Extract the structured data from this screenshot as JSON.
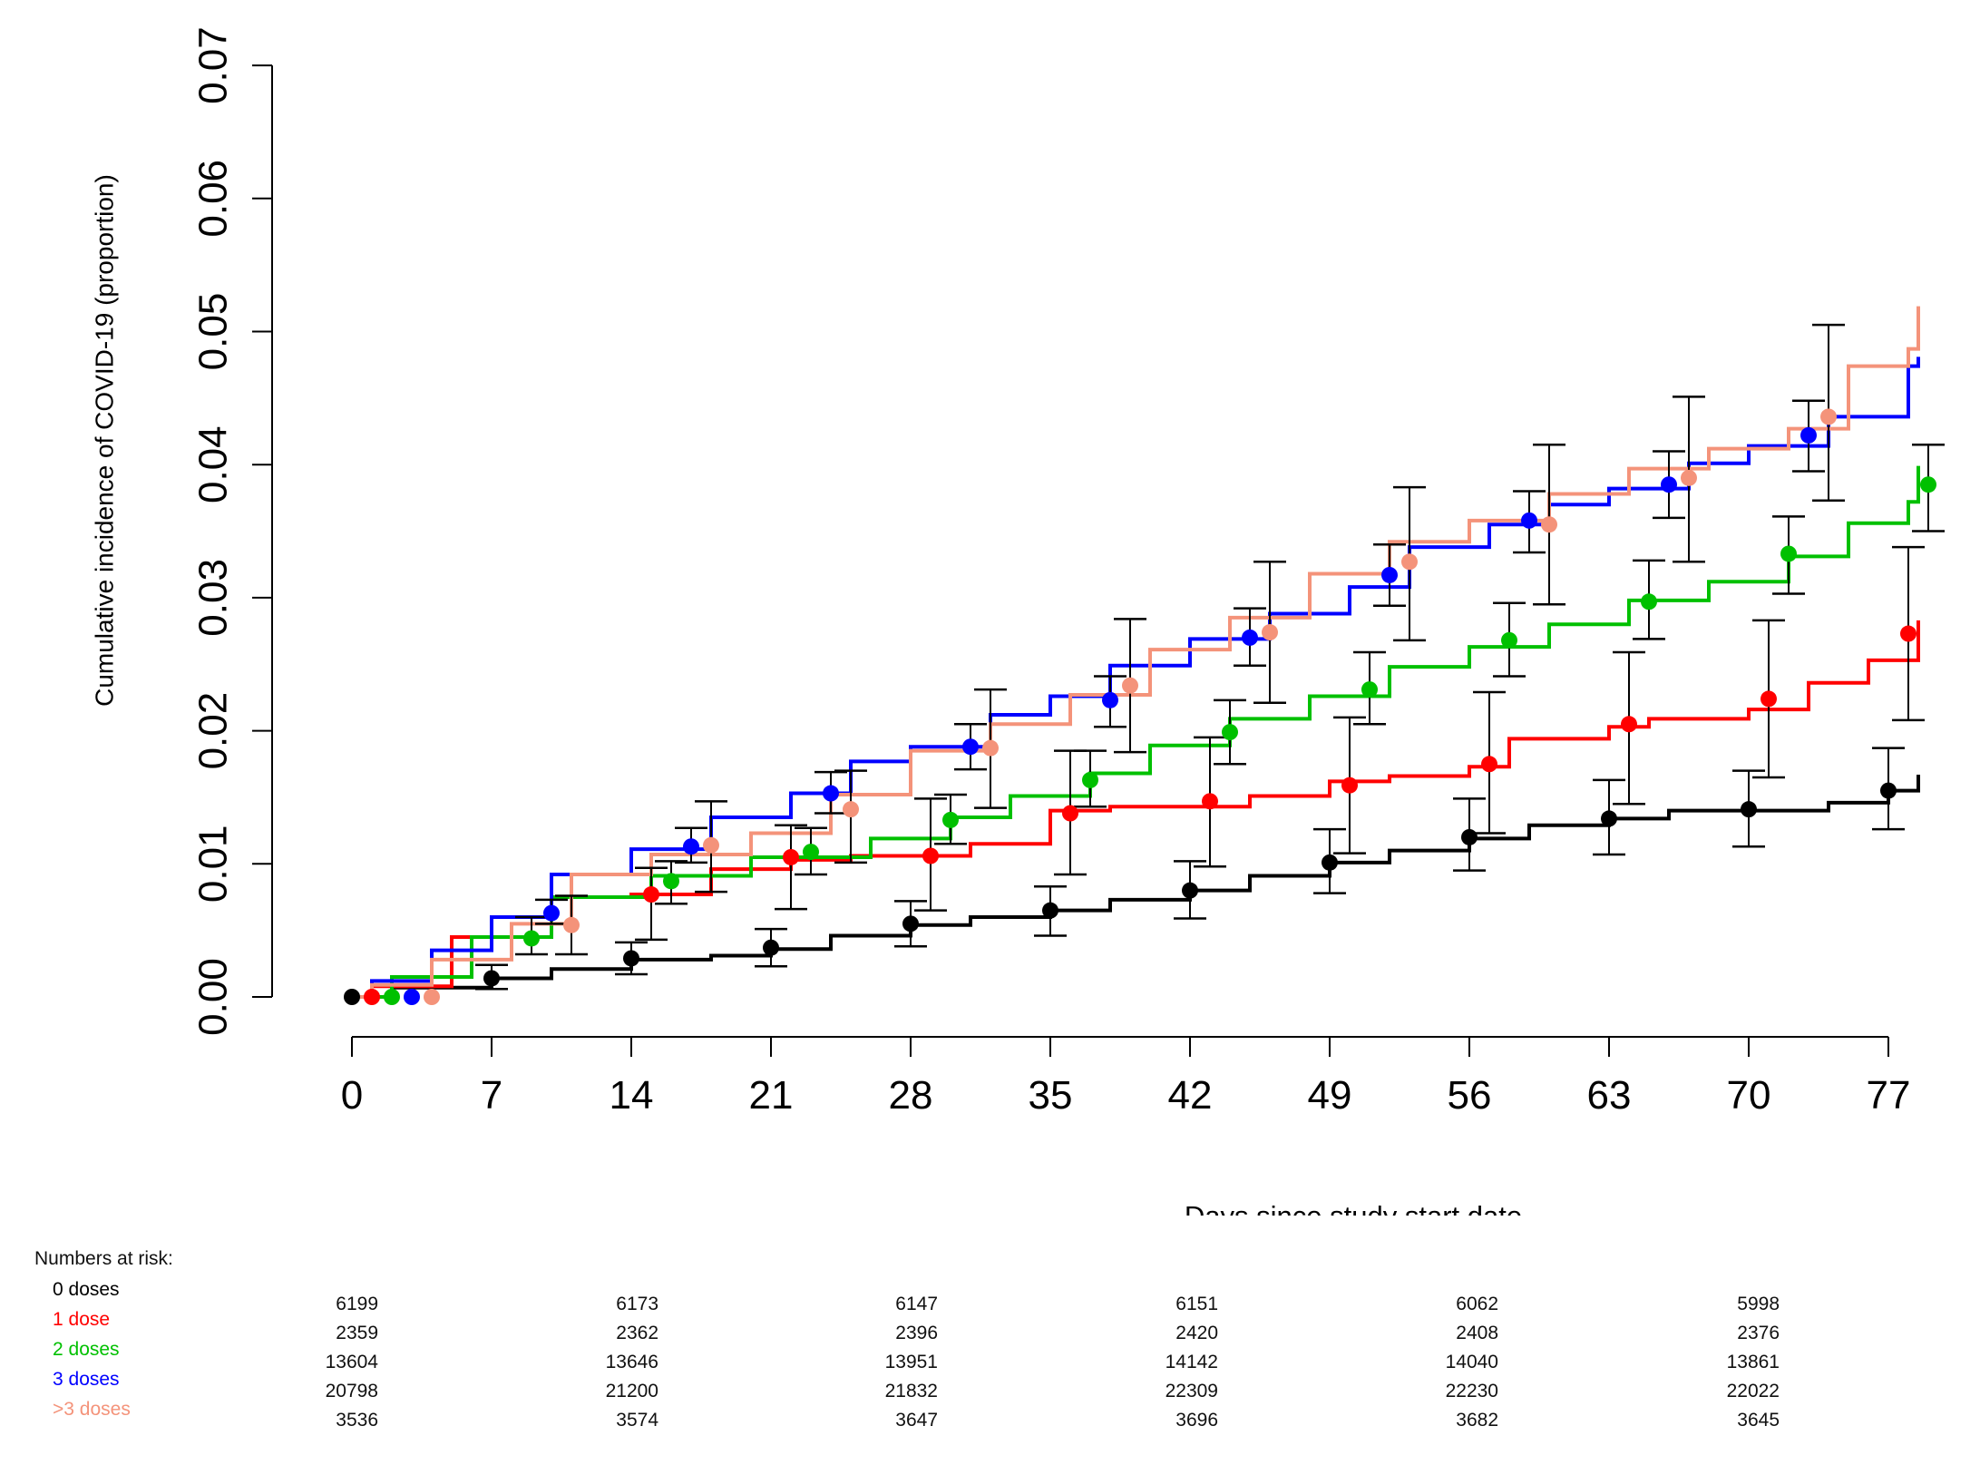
{
  "chart_data": {
    "type": "line",
    "xlabel": "Days since study start date",
    "ylabel": "Cumulative incidence of COVID-19 (proportion)",
    "xlim": [
      0,
      80.5
    ],
    "ylim": [
      0,
      0.07
    ],
    "x_ticks": [
      0,
      7,
      14,
      21,
      28,
      35,
      42,
      49,
      56,
      63,
      70,
      77
    ],
    "y_ticks": [
      "0.00",
      "0.01",
      "0.02",
      "0.03",
      "0.04",
      "0.05",
      "0.06",
      "0.07"
    ],
    "step": true,
    "series": [
      {
        "color": "#000000",
        "x": [
          0,
          2,
          7,
          10,
          14,
          18,
          21,
          24,
          28,
          31,
          35,
          38,
          42,
          45,
          49,
          52,
          56,
          59,
          63,
          66,
          70,
          74,
          77,
          78.5
        ],
        "y": [
          0,
          0.0007,
          0.0014,
          0.0021,
          0.0028,
          0.0031,
          0.0036,
          0.0046,
          0.0054,
          0.006,
          0.0065,
          0.0073,
          0.008,
          0.0091,
          0.0101,
          0.011,
          0.0119,
          0.0129,
          0.0134,
          0.014,
          0.014,
          0.0146,
          0.0155,
          0.0167
        ],
        "points": [
          [
            0,
            0
          ],
          [
            7,
            0.0014
          ],
          [
            14,
            0.0029
          ],
          [
            21,
            0.0037
          ],
          [
            28,
            0.0055
          ],
          [
            35,
            0.0065
          ],
          [
            42,
            0.008
          ],
          [
            49,
            0.0101
          ],
          [
            56,
            0.012
          ],
          [
            63,
            0.0134
          ],
          [
            70,
            0.0141
          ],
          [
            77,
            0.0155
          ]
        ],
        "ci": [
          [
            7,
            0.0006,
            0.0024
          ],
          [
            14,
            0.0017,
            0.0041
          ],
          [
            21,
            0.0023,
            0.0051
          ],
          [
            28,
            0.0038,
            0.0072
          ],
          [
            35,
            0.0046,
            0.0083
          ],
          [
            42,
            0.0059,
            0.0102
          ],
          [
            49,
            0.0078,
            0.0126
          ],
          [
            56,
            0.0095,
            0.0149
          ],
          [
            63,
            0.0107,
            0.0163
          ],
          [
            70,
            0.0113,
            0.017
          ],
          [
            77,
            0.0126,
            0.0187
          ]
        ]
      },
      {
        "color": "#ff0000",
        "x": [
          0,
          1,
          5,
          10,
          14,
          18,
          22,
          25,
          31,
          35,
          38,
          45,
          49,
          52,
          56,
          58,
          63,
          65,
          70,
          73,
          76,
          78.5
        ],
        "y": [
          0,
          0.0008,
          0.0045,
          0.0075,
          0.0077,
          0.0096,
          0.0103,
          0.0106,
          0.0115,
          0.014,
          0.0143,
          0.0151,
          0.0162,
          0.0166,
          0.0173,
          0.0194,
          0.0203,
          0.0209,
          0.0216,
          0.0236,
          0.0253,
          0.0283
        ],
        "points": [
          [
            1,
            0
          ],
          [
            15,
            0.0077
          ],
          [
            22,
            0.0105
          ],
          [
            29,
            0.0106
          ],
          [
            36,
            0.0138
          ],
          [
            43,
            0.0147
          ],
          [
            50,
            0.0159
          ],
          [
            57,
            0.0175
          ],
          [
            64,
            0.0205
          ],
          [
            71,
            0.0224
          ],
          [
            78,
            0.0273
          ]
        ],
        "ci": [
          [
            15,
            0.0043,
            0.0097
          ],
          [
            22,
            0.0066,
            0.0129
          ],
          [
            29,
            0.0065,
            0.0149
          ],
          [
            36,
            0.0092,
            0.0185
          ],
          [
            43,
            0.0098,
            0.0195
          ],
          [
            50,
            0.0108,
            0.021
          ],
          [
            57,
            0.0123,
            0.0229
          ],
          [
            64,
            0.0145,
            0.0259
          ],
          [
            71,
            0.0165,
            0.0283
          ],
          [
            78,
            0.0208,
            0.0338
          ]
        ]
      },
      {
        "color": "#00c000",
        "x": [
          0,
          2,
          6,
          10,
          15,
          20,
          26,
          30,
          33,
          37,
          40,
          44,
          48,
          52,
          56,
          60,
          64,
          68,
          72,
          75,
          78,
          78.5
        ],
        "y": [
          0,
          0.0015,
          0.0045,
          0.0075,
          0.0091,
          0.0105,
          0.0119,
          0.0135,
          0.0151,
          0.0168,
          0.0189,
          0.0209,
          0.0226,
          0.0248,
          0.0263,
          0.028,
          0.0298,
          0.0312,
          0.0331,
          0.0356,
          0.0372,
          0.0399
        ],
        "points": [
          [
            2,
            0
          ],
          [
            9,
            0.0044
          ],
          [
            16,
            0.0087
          ],
          [
            23,
            0.0109
          ],
          [
            30,
            0.0133
          ],
          [
            37,
            0.0163
          ],
          [
            44,
            0.0199
          ],
          [
            51,
            0.0231
          ],
          [
            58,
            0.0268
          ],
          [
            65,
            0.0297
          ],
          [
            72,
            0.0333
          ],
          [
            79,
            0.0385
          ]
        ],
        "ci": [
          [
            9,
            0.0032,
            0.006
          ],
          [
            16,
            0.007,
            0.0102
          ],
          [
            23,
            0.0092,
            0.0127
          ],
          [
            30,
            0.0115,
            0.0152
          ],
          [
            37,
            0.0143,
            0.0185
          ],
          [
            44,
            0.0175,
            0.0223
          ],
          [
            51,
            0.0205,
            0.0259
          ],
          [
            58,
            0.0241,
            0.0296
          ],
          [
            65,
            0.0269,
            0.0328
          ],
          [
            72,
            0.0303,
            0.0361
          ],
          [
            79,
            0.035,
            0.0415
          ]
        ]
      },
      {
        "color": "#0000ff",
        "x": [
          0,
          1,
          4,
          7,
          10,
          14,
          18,
          22,
          25,
          28,
          32,
          35,
          38,
          42,
          46,
          50,
          53,
          57,
          60,
          63,
          67,
          70,
          74,
          78,
          78.5
        ],
        "y": [
          0,
          0.0012,
          0.0035,
          0.006,
          0.0092,
          0.0111,
          0.0135,
          0.0153,
          0.0177,
          0.0188,
          0.0212,
          0.0226,
          0.0249,
          0.0269,
          0.0288,
          0.0308,
          0.0338,
          0.0355,
          0.037,
          0.0382,
          0.0401,
          0.0414,
          0.0436,
          0.0474,
          0.0481
        ],
        "points": [
          [
            3,
            0
          ],
          [
            10,
            0.0063
          ],
          [
            17,
            0.0113
          ],
          [
            24,
            0.0153
          ],
          [
            31,
            0.0188
          ],
          [
            38,
            0.0223
          ],
          [
            45,
            0.027
          ],
          [
            52,
            0.0317
          ],
          [
            59,
            0.0358
          ],
          [
            66,
            0.0385
          ],
          [
            73,
            0.0422
          ]
        ],
        "ci": [
          [
            10,
            0.0055,
            0.0073
          ],
          [
            17,
            0.0101,
            0.0127
          ],
          [
            24,
            0.0138,
            0.0169
          ],
          [
            31,
            0.0171,
            0.0205
          ],
          [
            38,
            0.0203,
            0.0241
          ],
          [
            45,
            0.0249,
            0.0292
          ],
          [
            52,
            0.0294,
            0.034
          ],
          [
            59,
            0.0334,
            0.038
          ],
          [
            66,
            0.036,
            0.041
          ],
          [
            73,
            0.0395,
            0.0448
          ]
        ]
      },
      {
        "color": "#f4937a",
        "x": [
          0,
          1,
          4,
          8,
          11,
          15,
          20,
          24,
          28,
          32,
          36,
          40,
          44,
          48,
          52,
          56,
          60,
          64,
          68,
          72,
          75,
          78,
          78.5
        ],
        "y": [
          0,
          0.0009,
          0.0028,
          0.0055,
          0.0092,
          0.0107,
          0.0123,
          0.0152,
          0.0185,
          0.0205,
          0.0227,
          0.0261,
          0.0285,
          0.0318,
          0.0342,
          0.0358,
          0.0378,
          0.0397,
          0.0412,
          0.0427,
          0.0474,
          0.0487,
          0.0519
        ],
        "points": [
          [
            4,
            0
          ],
          [
            11,
            0.0054
          ],
          [
            18,
            0.0114
          ],
          [
            25,
            0.0141
          ],
          [
            32,
            0.0187
          ],
          [
            39,
            0.0234
          ],
          [
            46,
            0.0274
          ],
          [
            53,
            0.0327
          ],
          [
            60,
            0.0355
          ],
          [
            67,
            0.039
          ],
          [
            74,
            0.0436
          ]
        ],
        "ci": [
          [
            11,
            0.0032,
            0.0076
          ],
          [
            18,
            0.0079,
            0.0147
          ],
          [
            25,
            0.0101,
            0.017
          ],
          [
            32,
            0.0142,
            0.0231
          ],
          [
            39,
            0.0184,
            0.0284
          ],
          [
            46,
            0.0221,
            0.0327
          ],
          [
            53,
            0.0268,
            0.0383
          ],
          [
            60,
            0.0295,
            0.0415
          ],
          [
            67,
            0.0327,
            0.0451
          ],
          [
            74,
            0.0373,
            0.0505
          ]
        ]
      }
    ]
  },
  "risk_table": {
    "title": "Numbers at risk:",
    "rows": [
      {
        "label": "0 doses",
        "color": "#000000",
        "values": [
          "6199",
          "6173",
          "6147",
          "6151",
          "6062",
          "5998"
        ]
      },
      {
        "label": "1 dose",
        "color": "#ff0000",
        "values": [
          "2359",
          "2362",
          "2396",
          "2420",
          "2408",
          "2376"
        ]
      },
      {
        "label": "2 doses",
        "color": "#00c000",
        "values": [
          "13604",
          "13646",
          "13951",
          "14142",
          "14040",
          "13861"
        ]
      },
      {
        "label": "3 doses",
        "color": "#0000ff",
        "values": [
          "20798",
          "21200",
          "21832",
          "22309",
          "22230",
          "22022"
        ]
      },
      {
        "label": ">3 doses",
        "color": "#f4937a",
        "values": [
          "3536",
          "3574",
          "3647",
          "3696",
          "3682",
          "3645"
        ]
      }
    ]
  }
}
